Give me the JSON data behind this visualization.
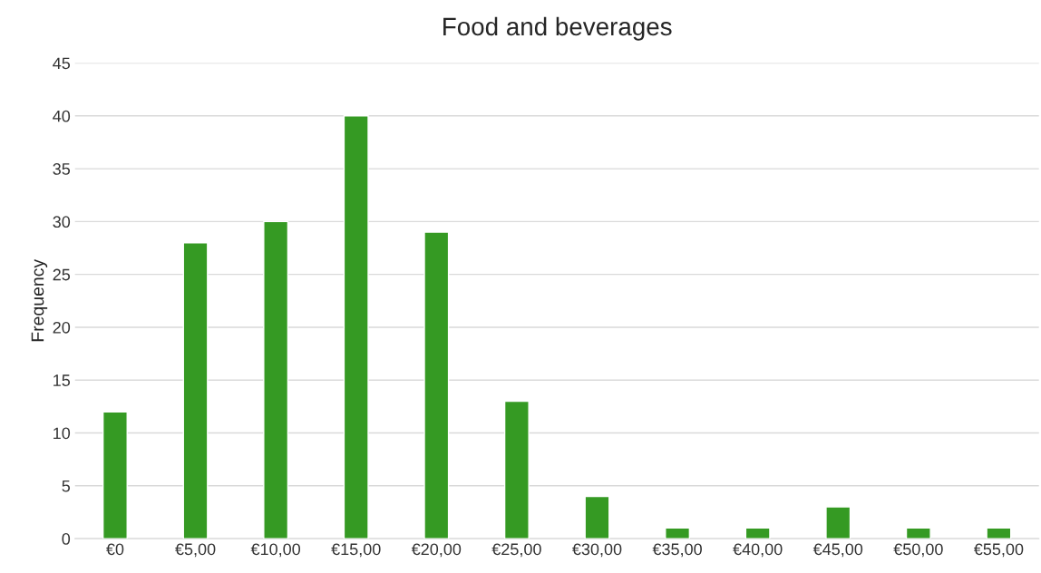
{
  "chart_data": {
    "type": "bar",
    "title": "Food and beverages",
    "ylabel": "Frequency",
    "categories": [
      "€0",
      "€5,00",
      "€10,00",
      "€15,00",
      "€20,00",
      "€25,00",
      "€30,00",
      "€35,00",
      "€40,00",
      "€45,00",
      "€50,00",
      "€55,00"
    ],
    "values": [
      12,
      28,
      30,
      40,
      29,
      13,
      4,
      1,
      1,
      3,
      1,
      1
    ],
    "color": "#359a23",
    "ylim": [
      0,
      45
    ],
    "yticks": [
      0,
      5,
      10,
      15,
      20,
      25,
      30,
      35,
      40,
      45
    ],
    "grid": "y"
  }
}
